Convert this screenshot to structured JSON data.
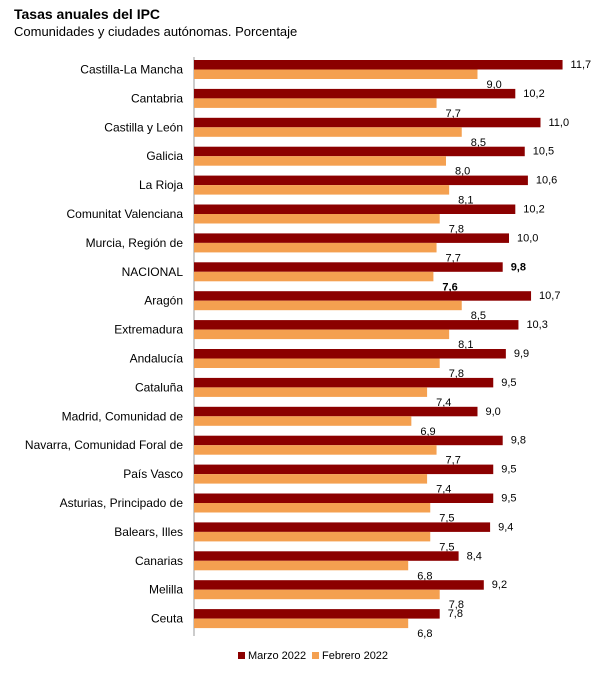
{
  "header": {
    "title": "Tasas anuales del IPC",
    "subtitle": "Comunidades y ciudades autónomas. Porcentaje"
  },
  "colors": {
    "marzo": "#8B0000",
    "febrero": "#F4A050"
  },
  "chart_data": {
    "type": "bar",
    "orientation": "horizontal",
    "title": "Tasas anuales del IPC",
    "subtitle": "Comunidades y ciudades autónomas. Porcentaje",
    "xlim": [
      0,
      12
    ],
    "grid": false,
    "legend_position": "bottom",
    "highlight_category": "NACIONAL",
    "value_labels": {
      "Marzo 2022": [
        "11,7",
        "10,2",
        "11,0",
        "10,5",
        "10,6",
        "10,2",
        "10,0",
        "9,8",
        "10,7",
        "10,3",
        "9,9",
        "9,5",
        "9,0",
        "9,8",
        "9,5",
        "9,5",
        "9,4",
        "8,4",
        "9,2",
        "7,8"
      ],
      "Febrero 2022": [
        "9,0",
        "7,7",
        "8,5",
        "8,0",
        "8,1",
        "7,8",
        "7,7",
        "7,6",
        "8,5",
        "8,1",
        "7,8",
        "7,4",
        "6,9",
        "7,7",
        "7,4",
        "7,5",
        "7,5",
        "6,8",
        "7,8",
        "6,8"
      ]
    },
    "categories": [
      "Castilla-La Mancha",
      "Cantabria",
      "Castilla y León",
      "Galicia",
      "La Rioja",
      "Comunitat Valenciana",
      "Murcia, Región de",
      "NACIONAL",
      "Aragón",
      "Extremadura",
      "Andalucía",
      "Cataluña",
      "Madrid, Comunidad de",
      "Navarra, Comunidad Foral de",
      "País Vasco",
      "Asturias, Principado de",
      "Balears, Illes",
      "Canarias",
      "Melilla",
      "Ceuta"
    ],
    "series": [
      {
        "name": "Marzo 2022",
        "values": [
          11.7,
          10.2,
          11.0,
          10.5,
          10.6,
          10.2,
          10.0,
          9.8,
          10.7,
          10.3,
          9.9,
          9.5,
          9.0,
          9.8,
          9.5,
          9.5,
          9.4,
          8.4,
          9.2,
          7.8
        ]
      },
      {
        "name": "Febrero 2022",
        "values": [
          9.0,
          7.7,
          8.5,
          8.0,
          8.1,
          7.8,
          7.7,
          7.6,
          8.5,
          8.1,
          7.8,
          7.4,
          6.9,
          7.7,
          7.4,
          7.5,
          7.5,
          6.8,
          7.8,
          6.8
        ]
      }
    ]
  }
}
